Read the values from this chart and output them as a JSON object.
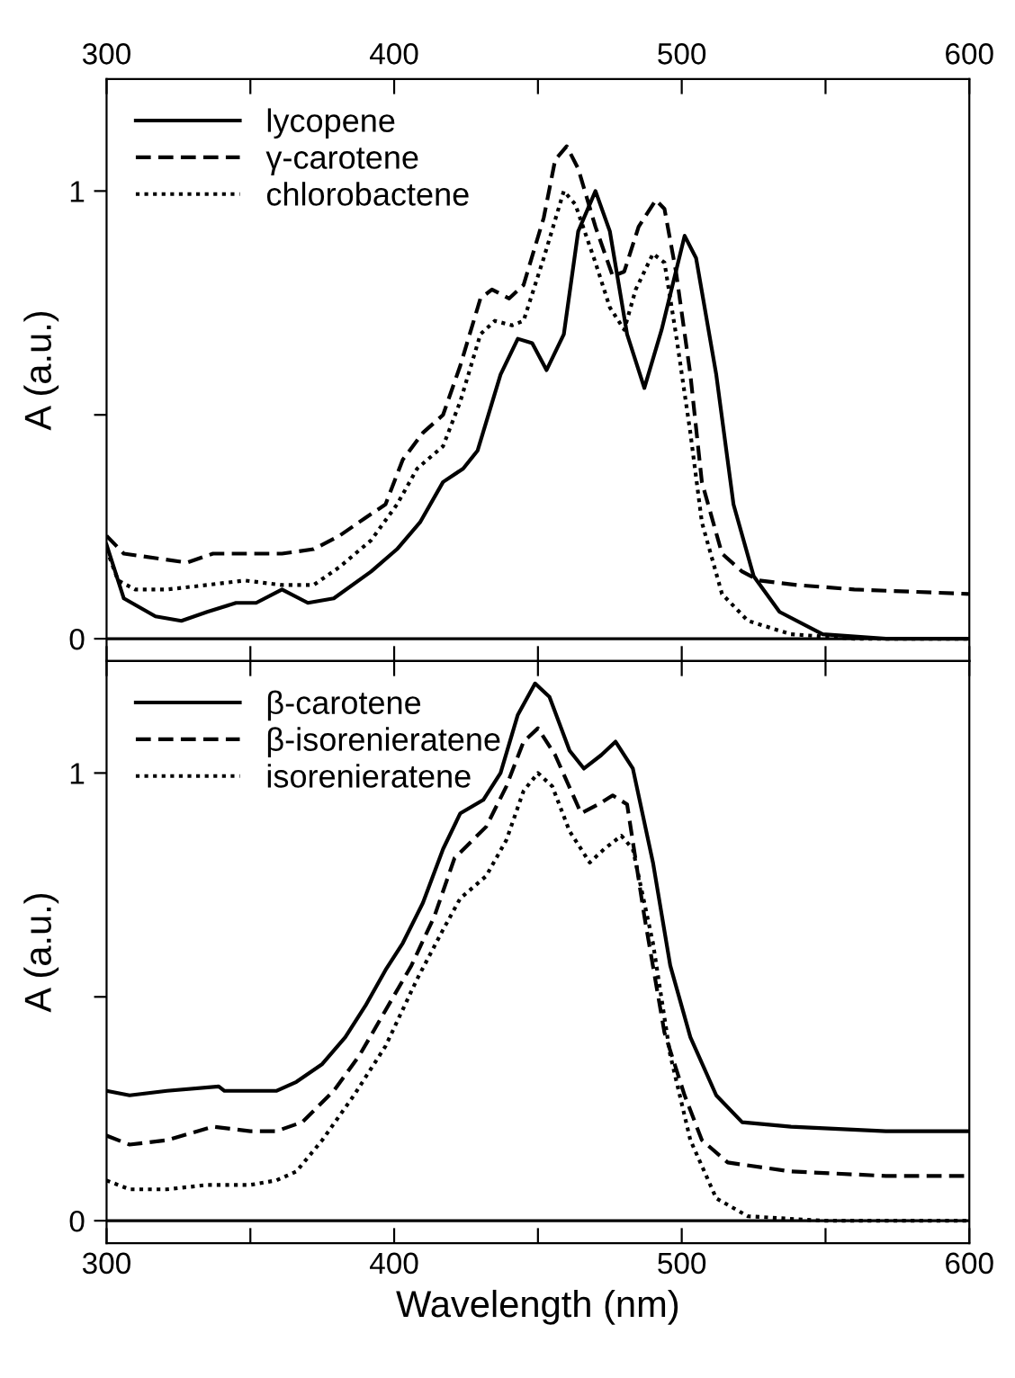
{
  "chart_data": [
    {
      "type": "line",
      "ylabel": "A (a.u.)",
      "xlim": [
        300,
        600
      ],
      "xticks": [
        300,
        {
          "value": 350,
          "label": null
        },
        400,
        {
          "value": 450,
          "label": null
        },
        500,
        {
          "value": 550,
          "label": null
        },
        600
      ],
      "ylim": [
        -0.05,
        1.25
      ],
      "yticks": [
        0,
        {
          "value": 0.5,
          "label": null
        },
        1
      ],
      "legend": "top left",
      "grid": false,
      "ref_lines": [
        {
          "axis": "y",
          "value": 0,
          "color": "#000000",
          "line_style": "solid"
        }
      ],
      "series": [
        {
          "name": "lycopene",
          "color": "#000000",
          "line_style": "solid",
          "x": [
            300,
            306,
            317,
            326,
            335,
            345,
            352,
            361,
            370,
            379,
            392,
            401,
            409,
            417,
            424,
            429,
            437,
            443,
            448,
            453,
            459,
            464,
            470,
            475,
            481,
            487,
            493,
            501,
            505,
            512,
            518,
            525,
            534,
            549,
            571,
            600
          ],
          "values": [
            0.21,
            0.09,
            0.05,
            0.04,
            0.06,
            0.08,
            0.08,
            0.11,
            0.08,
            0.09,
            0.15,
            0.2,
            0.26,
            0.35,
            0.38,
            0.42,
            0.59,
            0.67,
            0.66,
            0.6,
            0.68,
            0.91,
            1.0,
            0.91,
            0.68,
            0.56,
            0.69,
            0.9,
            0.85,
            0.59,
            0.3,
            0.14,
            0.06,
            0.01,
            0,
            0
          ]
        },
        {
          "name": "γ-carotene",
          "color": "#000000",
          "line_style": "dashed",
          "x": [
            300,
            306,
            317,
            328,
            337,
            350,
            361,
            372,
            381,
            390,
            397,
            403,
            410,
            417,
            423,
            430,
            434,
            440,
            445,
            452,
            456,
            460,
            464,
            470,
            476,
            480,
            485,
            491,
            494,
            498,
            503,
            507,
            514,
            521,
            527,
            540,
            560,
            600
          ],
          "values": [
            0.23,
            0.19,
            0.18,
            0.17,
            0.19,
            0.19,
            0.19,
            0.2,
            0.23,
            0.27,
            0.3,
            0.4,
            0.46,
            0.5,
            0.61,
            0.76,
            0.78,
            0.76,
            0.79,
            0.94,
            1.07,
            1.1,
            1.05,
            0.92,
            0.81,
            0.82,
            0.92,
            0.98,
            0.96,
            0.82,
            0.59,
            0.35,
            0.19,
            0.15,
            0.13,
            0.12,
            0.11,
            0.1
          ]
        },
        {
          "name": "chlorobactene",
          "color": "#000000",
          "line_style": "dotted",
          "x": [
            300,
            304,
            310,
            321,
            335,
            348,
            361,
            372,
            381,
            392,
            401,
            408,
            417,
            423,
            430,
            435,
            441,
            445,
            452,
            459,
            463,
            470,
            475,
            480,
            484,
            490,
            494,
            498,
            503,
            507,
            514,
            523,
            538,
            560,
            600
          ],
          "values": [
            0.2,
            0.13,
            0.11,
            0.11,
            0.12,
            0.13,
            0.12,
            0.12,
            0.16,
            0.22,
            0.3,
            0.38,
            0.43,
            0.53,
            0.68,
            0.71,
            0.7,
            0.71,
            0.85,
            1.0,
            0.97,
            0.84,
            0.74,
            0.69,
            0.78,
            0.86,
            0.84,
            0.68,
            0.46,
            0.26,
            0.1,
            0.04,
            0.01,
            0,
            0
          ]
        }
      ]
    },
    {
      "type": "line",
      "xlabel": "Wavelength (nm)",
      "ylabel": "A (a.u.)",
      "xlim": [
        300,
        600
      ],
      "xticks": [
        300,
        {
          "value": 350,
          "label": null
        },
        400,
        {
          "value": 450,
          "label": null
        },
        500,
        {
          "value": 550,
          "label": null
        },
        600
      ],
      "ylim": [
        -0.05,
        1.25
      ],
      "yticks": [
        0,
        {
          "value": 0.5,
          "label": null
        },
        1
      ],
      "legend": "top left",
      "grid": false,
      "ref_lines": [
        {
          "axis": "y",
          "value": 0,
          "color": "#000000",
          "line_style": "solid"
        }
      ],
      "series": [
        {
          "name": "β-carotene",
          "color": "#000000",
          "line_style": "solid",
          "x": [
            300,
            308,
            321,
            339,
            341,
            359,
            366,
            375,
            383,
            390,
            397,
            403,
            410,
            417,
            423,
            431,
            437,
            443,
            449,
            454,
            461,
            466,
            472,
            477,
            483,
            490,
            496,
            503,
            512,
            521,
            538,
            571,
            600
          ],
          "values": [
            0.29,
            0.28,
            0.29,
            0.3,
            0.29,
            0.29,
            0.31,
            0.35,
            0.41,
            0.48,
            0.56,
            0.62,
            0.71,
            0.83,
            0.91,
            0.94,
            1.0,
            1.13,
            1.2,
            1.17,
            1.05,
            1.01,
            1.04,
            1.07,
            1.01,
            0.8,
            0.57,
            0.41,
            0.28,
            0.22,
            0.21,
            0.2,
            0.2
          ]
        },
        {
          "name": "β-isorenieratene",
          "color": "#000000",
          "line_style": "dashed",
          "x": [
            300,
            308,
            321,
            337,
            350,
            359,
            368,
            379,
            388,
            397,
            406,
            414,
            421,
            432,
            439,
            445,
            450,
            456,
            465,
            471,
            476,
            481,
            487,
            494,
            501,
            507,
            516,
            538,
            571,
            600
          ],
          "values": [
            0.19,
            0.17,
            0.18,
            0.21,
            0.2,
            0.2,
            0.22,
            0.29,
            0.37,
            0.47,
            0.57,
            0.68,
            0.81,
            0.88,
            0.97,
            1.07,
            1.1,
            1.04,
            0.91,
            0.93,
            0.95,
            0.93,
            0.68,
            0.42,
            0.28,
            0.18,
            0.13,
            0.11,
            0.1,
            0.1
          ]
        },
        {
          "name": "isorenieratene",
          "color": "#000000",
          "line_style": "dotted",
          "x": [
            300,
            308,
            321,
            335,
            350,
            359,
            366,
            375,
            386,
            397,
            408,
            417,
            423,
            432,
            439,
            445,
            450,
            455,
            461,
            468,
            473,
            479,
            483,
            490,
            496,
            503,
            512,
            523,
            549,
            600
          ],
          "values": [
            0.09,
            0.07,
            0.07,
            0.08,
            0.08,
            0.09,
            0.11,
            0.18,
            0.28,
            0.39,
            0.54,
            0.65,
            0.72,
            0.77,
            0.85,
            0.96,
            1.0,
            0.97,
            0.87,
            0.8,
            0.83,
            0.86,
            0.83,
            0.62,
            0.37,
            0.18,
            0.05,
            0.01,
            0,
            0
          ]
        }
      ]
    }
  ]
}
